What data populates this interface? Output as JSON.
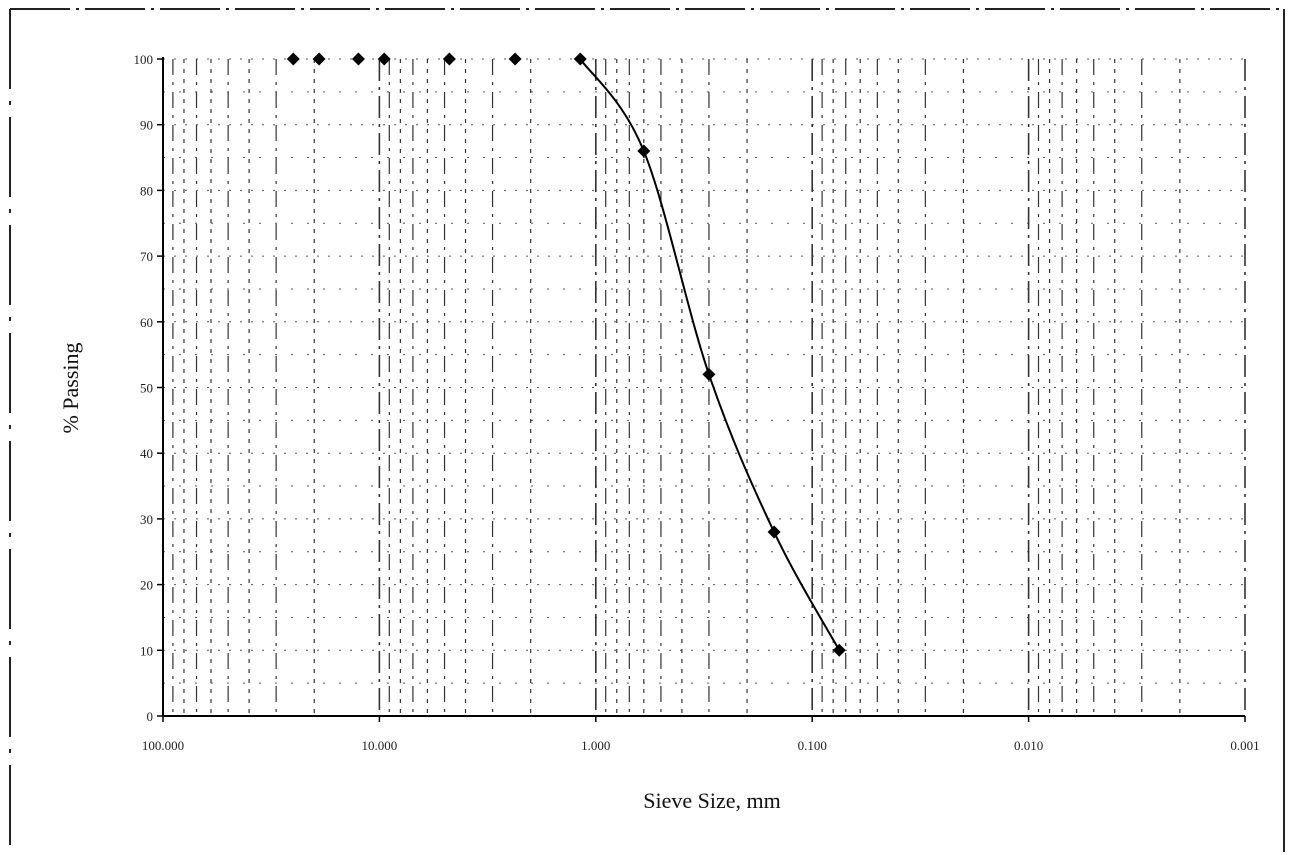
{
  "chart_data": {
    "type": "scatter",
    "title": "",
    "xlabel": "Sieve Size, mm",
    "ylabel": "% Passing",
    "x_scale": "log",
    "x_reversed": true,
    "xlim": [
      100.0,
      0.001
    ],
    "ylim": [
      0,
      100
    ],
    "x_ticks": [
      100,
      10,
      1,
      0.1,
      0.01,
      0.001
    ],
    "x_tick_labels": [
      "100.000",
      "10.000",
      "1.000",
      "0.100",
      "0.010",
      "0.001"
    ],
    "y_ticks": [
      0,
      10,
      20,
      30,
      40,
      50,
      60,
      70,
      80,
      90,
      100
    ],
    "y_tick_labels": [
      "0",
      "10",
      "20",
      "30",
      "40",
      "50",
      "60",
      "70",
      "80",
      "90",
      "100"
    ],
    "grid": true,
    "legend": "none",
    "series": [
      {
        "marker": "diamond",
        "line": "smooth",
        "color": "#000000",
        "x": [
          25.0,
          19.0,
          12.5,
          9.5,
          4.75,
          2.36,
          1.18,
          0.6,
          0.3,
          0.15,
          0.075
        ],
        "y": [
          100,
          100,
          100,
          100,
          100,
          100,
          100,
          86,
          52,
          28,
          10
        ]
      }
    ]
  }
}
